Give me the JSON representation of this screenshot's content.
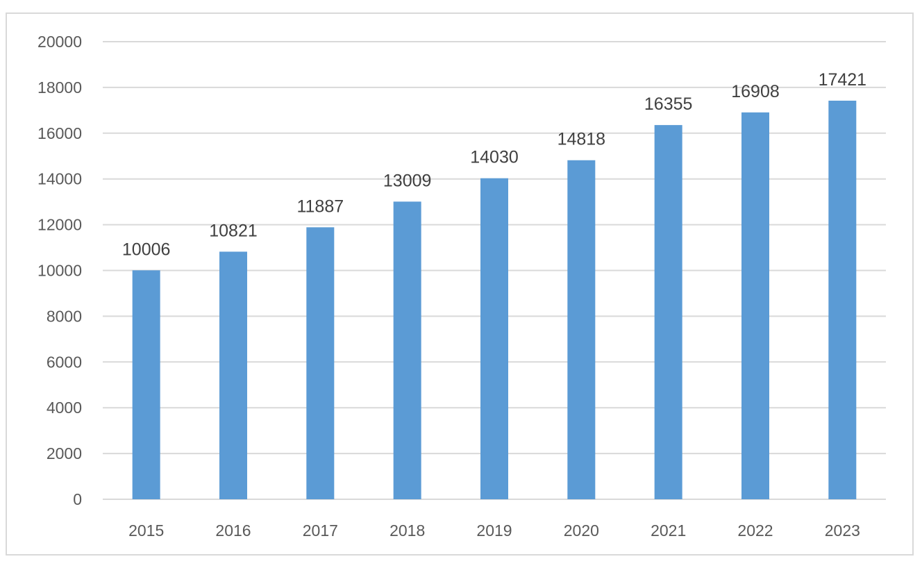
{
  "chart_data": {
    "type": "bar",
    "title": "",
    "xlabel": "",
    "ylabel": "",
    "categories": [
      "2015",
      "2016",
      "2017",
      "2018",
      "2019",
      "2020",
      "2021",
      "2022",
      "2023"
    ],
    "values": [
      10006,
      10821,
      11887,
      13009,
      14030,
      14818,
      16355,
      16908,
      17421
    ],
    "ylim": [
      0,
      20000
    ],
    "yticks": [
      "0",
      "2000",
      "4000",
      "6000",
      "8000",
      "10000",
      "12000",
      "14000",
      "16000",
      "18000",
      "20000"
    ],
    "data_labels": [
      "10006",
      "10821",
      "11887",
      "13009",
      "14030",
      "14818",
      "16355",
      "16908",
      "17421"
    ],
    "grid": true,
    "legend": "none",
    "colors": {
      "bar": "#5b9bd5",
      "grid": "#d9d9d9",
      "axis": "#d9d9d9"
    }
  }
}
